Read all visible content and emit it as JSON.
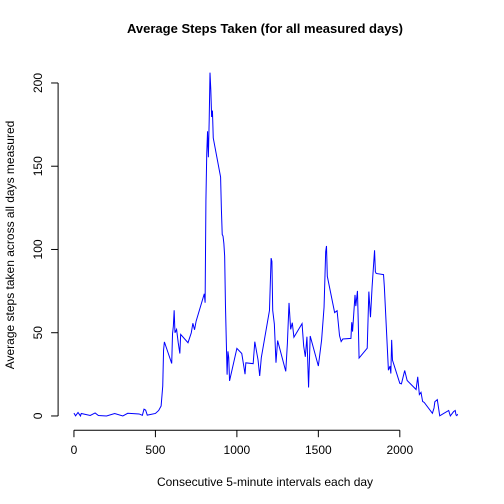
{
  "chart_data": {
    "type": "line",
    "title": "Average Steps Taken (for all measured days)",
    "x_label": "Consecutive 5-minute intervals each day",
    "y_label": "Average steps taken across all days measured",
    "series": [
      {
        "name": "Average steps",
        "color": "#0000ff",
        "x": [
          0,
          10,
          25,
          40,
          45,
          100,
          130,
          150,
          200,
          250,
          300,
          330,
          400,
          420,
          430,
          440,
          450,
          500,
          520,
          535,
          545,
          550,
          555,
          600,
          605,
          610,
          615,
          620,
          630,
          640,
          650,
          655,
          700,
          720,
          730,
          740,
          750,
          800,
          805,
          810,
          815,
          820,
          825,
          830,
          835,
          840,
          845,
          850,
          855,
          900,
          905,
          910,
          915,
          920,
          925,
          930,
          935,
          940,
          945,
          950,
          955,
          1000,
          1030,
          1045,
          1050,
          1055,
          1100,
          1110,
          1130,
          1140,
          1150,
          1200,
          1210,
          1215,
          1220,
          1230,
          1240,
          1250,
          1300,
          1310,
          1320,
          1330,
          1340,
          1350,
          1400,
          1410,
          1420,
          1430,
          1440,
          1450,
          1500,
          1520,
          1535,
          1545,
          1550,
          1555,
          1600,
          1615,
          1630,
          1640,
          1650,
          1700,
          1705,
          1710,
          1725,
          1730,
          1740,
          1745,
          1750,
          1800,
          1810,
          1820,
          1830,
          1845,
          1850,
          1855,
          1900,
          1905,
          1930,
          1940,
          1945,
          1950,
          1955,
          2000,
          2010,
          2030,
          2045,
          2100,
          2110,
          2120,
          2130,
          2140,
          2150,
          2200,
          2210,
          2215,
          2230,
          2245,
          2300,
          2310,
          2330,
          2340,
          2345,
          2350,
          2355
        ],
        "values": [
          1.7,
          0.1,
          2.1,
          0,
          1.5,
          0.3,
          1.8,
          0.3,
          0,
          1.5,
          0,
          1.6,
          1.2,
          0.4,
          4.1,
          3.5,
          0.5,
          1.5,
          3.3,
          6,
          18,
          39.5,
          44.5,
          31.5,
          49.3,
          53.8,
          63.5,
          50,
          52,
          44,
          37.5,
          49,
          44,
          49.9,
          55.7,
          51.8,
          57,
          73.4,
          68,
          129.4,
          157.5,
          171,
          155.4,
          177.3,
          206.2,
          195.9,
          179.6,
          183.4,
          167,
          143.5,
          124,
          109,
          108,
          103.7,
          96,
          66.2,
          45.2,
          24.8,
          38.8,
          35,
          21.1,
          40.6,
          37.5,
          28.3,
          25.1,
          31.9,
          31.4,
          44.6,
          33.6,
          24,
          35.1,
          63.4,
          94.8,
          92.8,
          63.4,
          55.2,
          32,
          45.3,
          26.8,
          43.6,
          67.9,
          52,
          56,
          47.3,
          55.5,
          42,
          35.5,
          47.6,
          17.1,
          48,
          30,
          45.6,
          65.3,
          98.7,
          102.1,
          83.9,
          62.1,
          63.2,
          48.2,
          44.7,
          46.2,
          46.6,
          56.3,
          50.7,
          72.7,
          66,
          75.1,
          56.5,
          34.8,
          40.7,
          74.7,
          59.3,
          77.7,
          99.5,
          86.6,
          85.6,
          84.9,
          77.8,
          27.5,
          30,
          25.5,
          45.7,
          33.5,
          19.6,
          19.3,
          27.3,
          21.3,
          15.9,
          23.5,
          12.9,
          14.2,
          8.7,
          8.1,
          1.6,
          4.8,
          8.5,
          9.8,
          0.1,
          3.3,
          0,
          2.6,
          3.3,
          0.6,
          0.2,
          1.1
        ]
      }
    ],
    "xlim": [
      -94.2,
      2449.2
    ],
    "xticks": [
      0,
      500,
      1000,
      1500,
      2000
    ],
    "ylim": [
      -8.25,
      214.4
    ],
    "yticks": [
      0,
      50,
      100,
      150,
      200
    ]
  }
}
